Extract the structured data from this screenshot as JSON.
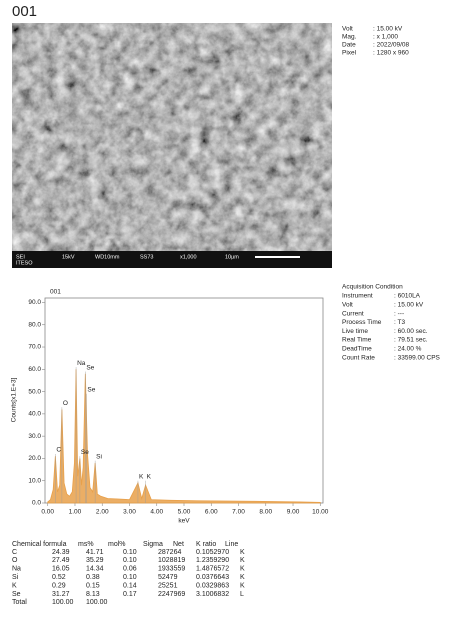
{
  "header": {
    "title": "001"
  },
  "sem_image": {
    "info_bar": [
      "SEI",
      "ITESO",
      "15kV",
      "WD10mm",
      "SS73",
      "x1,000",
      "10µm"
    ],
    "conditions": [
      {
        "label": "Volt",
        "value": ": 15.00 kV"
      },
      {
        "label": "Mag.",
        "value": ": x 1,000"
      },
      {
        "label": "Date",
        "value": ": 2022/09/08"
      },
      {
        "label": "Pixel",
        "value": ": 1280 x 960"
      }
    ]
  },
  "acquisition": {
    "title": "Acquisition Condition",
    "items": [
      {
        "label": "Instrument",
        "value": ": 6010LA"
      },
      {
        "label": "Volt",
        "value": ": 15.00 kV"
      },
      {
        "label": "Current",
        "value": ": ---"
      },
      {
        "label": "Process Time",
        "value": ": T3"
      },
      {
        "label": "Live time",
        "value": ": 60.00 sec."
      },
      {
        "label": "Real Time",
        "value": ": 79.51 sec."
      },
      {
        "label": "DeadTime",
        "value": ": 24.00 %"
      },
      {
        "label": "Count Rate",
        "value": ": 33599.00 CPS"
      }
    ]
  },
  "chart_data": {
    "type": "area",
    "title": "001",
    "x_label": "keV",
    "y_label": "Counts[x1.E+3]",
    "xlim": [
      -0.1,
      10.1
    ],
    "ylim": [
      0,
      92
    ],
    "xticks": [
      {
        "value": 0,
        "label": "0.00"
      },
      {
        "value": 1,
        "label": "1.00"
      },
      {
        "value": 2,
        "label": "2.00"
      },
      {
        "value": 3,
        "label": "3.00"
      },
      {
        "value": 4,
        "label": "4.00"
      },
      {
        "value": 5,
        "label": "5.00"
      },
      {
        "value": 6,
        "label": "6.00"
      },
      {
        "value": 7,
        "label": "7.00"
      },
      {
        "value": 8,
        "label": "8.00"
      },
      {
        "value": 9,
        "label": "9.00"
      },
      {
        "value": 10,
        "label": "10.00"
      }
    ],
    "yticks": [
      {
        "value": 0,
        "label": "0.0"
      },
      {
        "value": 10,
        "label": "10.0"
      },
      {
        "value": 20,
        "label": "20.0"
      },
      {
        "value": 30,
        "label": "30.0"
      },
      {
        "value": 40,
        "label": "40.0"
      },
      {
        "value": 50,
        "label": "50.0"
      },
      {
        "value": 60,
        "label": "60.0"
      },
      {
        "value": 70,
        "label": "70.0"
      },
      {
        "value": 80,
        "label": "80.0"
      },
      {
        "value": 90,
        "label": "90.0"
      }
    ],
    "x": [
      0.0,
      0.1,
      0.2,
      0.28,
      0.36,
      0.44,
      0.52,
      0.6,
      0.7,
      0.8,
      0.9,
      0.98,
      1.04,
      1.1,
      1.18,
      1.24,
      1.3,
      1.38,
      1.46,
      1.55,
      1.65,
      1.74,
      1.82,
      1.95,
      2.2,
      2.6,
      3.0,
      3.31,
      3.45,
      3.59,
      3.8,
      4.5,
      5.5,
      6.5,
      7.5,
      8.5,
      9.2,
      10.0
    ],
    "series": [
      {
        "color": "#e8a04a",
        "values": [
          0.5,
          1.5,
          6,
          21,
          5,
          8,
          42,
          9,
          4,
          3,
          5,
          18,
          60,
          12,
          20,
          8,
          16,
          58,
          22,
          7,
          5,
          18,
          4,
          3,
          2,
          1.8,
          1.5,
          9,
          2,
          8,
          1.5,
          1.2,
          1,
          0.9,
          0.8,
          0.6,
          0.5,
          0.3
        ]
      }
    ],
    "annotations": [
      {
        "text": "C",
        "x": 0.28,
        "y": 22
      },
      {
        "text": "O",
        "x": 0.52,
        "y": 43
      },
      {
        "text": "Na",
        "x": 1.04,
        "y": 61
      },
      {
        "text": "Se",
        "x": 1.38,
        "y": 59
      },
      {
        "text": "Se",
        "x": 1.42,
        "y": 49
      },
      {
        "text": "Se",
        "x": 1.18,
        "y": 21
      },
      {
        "text": "Si",
        "x": 1.74,
        "y": 19
      },
      {
        "text": "K",
        "x": 3.31,
        "y": 10
      },
      {
        "text": "K",
        "x": 3.59,
        "y": 10
      }
    ]
  },
  "table": {
    "header": [
      "Chemical formula",
      "ms%",
      "mol%",
      "Sigma",
      "Net",
      "K ratio",
      "Line"
    ],
    "rows": [
      [
        "C",
        "24.39",
        "41.71",
        "0.10",
        "287264",
        "0.1052970",
        "K"
      ],
      [
        "O",
        "27.49",
        "35.29",
        "0.10",
        "1028819",
        "1.2359290",
        "K"
      ],
      [
        "Na",
        "16.05",
        "14.34",
        "0.06",
        "1933559",
        "1.4876572",
        "K"
      ],
      [
        "Si",
        "0.52",
        "0.38",
        "0.10",
        "52479",
        "0.0376643",
        "K"
      ],
      [
        "K",
        "0.29",
        "0.15",
        "0.14",
        "25251",
        "0.0329863",
        "K"
      ],
      [
        "Se",
        "31.27",
        "8.13",
        "0.17",
        "2247969",
        "3.1006832",
        "L"
      ],
      [
        "Total",
        "100.00",
        "100.00"
      ]
    ]
  }
}
